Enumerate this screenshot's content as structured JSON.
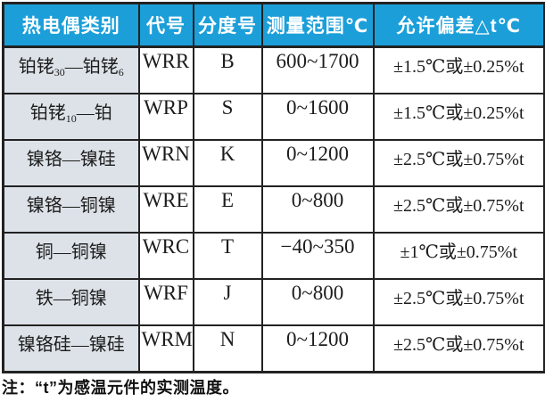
{
  "table": {
    "headers": [
      "热电偶类别",
      "代号",
      "分度号",
      "测量范围℃",
      "允许偏差△t℃"
    ],
    "rows": [
      {
        "name": "铂铑30-铂铑6",
        "name_parts": [
          {
            "t": "铂铑"
          },
          {
            "t": "30",
            "sub": true
          },
          {
            "t": "—"
          },
          {
            "t": "铂铑"
          },
          {
            "t": "6",
            "sub": true
          }
        ],
        "code": "WRR",
        "graduation": "B",
        "range": "600~1700",
        "tolerance": "±1.5℃或±0.25%t"
      },
      {
        "name": "铂铑10-铂",
        "name_parts": [
          {
            "t": "铂铑"
          },
          {
            "t": "10",
            "sub": true
          },
          {
            "t": "—"
          },
          {
            "t": "铂"
          }
        ],
        "code": "WRP",
        "graduation": "S",
        "range": "0~1600",
        "tolerance": "±1.5℃或±0.25%t"
      },
      {
        "name": "镍铬-镍硅",
        "name_parts": [
          {
            "t": "镍铬"
          },
          {
            "t": "—"
          },
          {
            "t": "镍硅"
          }
        ],
        "code": "WRN",
        "graduation": "K",
        "range": "0~1200",
        "tolerance": "±2.5℃或±0.75%t"
      },
      {
        "name": "镍铬-铜镍",
        "name_parts": [
          {
            "t": "镍铬"
          },
          {
            "t": "—"
          },
          {
            "t": "铜镍"
          }
        ],
        "code": "WRE",
        "graduation": "E",
        "range": "0~800",
        "tolerance": "±2.5℃或±0.75%t"
      },
      {
        "name": "铜-铜镍",
        "name_parts": [
          {
            "t": "铜"
          },
          {
            "t": "—"
          },
          {
            "t": "铜镍"
          }
        ],
        "code": "WRC",
        "graduation": "T",
        "range": "−40~350",
        "tolerance": "±1℃或±0.75%t"
      },
      {
        "name": "铁-铜镍",
        "name_parts": [
          {
            "t": "铁"
          },
          {
            "t": "—"
          },
          {
            "t": "铜镍"
          }
        ],
        "code": "WRF",
        "graduation": "J",
        "range": "0~800",
        "tolerance": "±2.5℃或±0.75%t"
      },
      {
        "name": "镍铬硅-镍硅",
        "name_parts": [
          {
            "t": "镍铬硅"
          },
          {
            "t": "—"
          },
          {
            "t": "镍硅"
          }
        ],
        "code": "WRM",
        "graduation": "N",
        "range": "0~1200",
        "tolerance": "±2.5℃或±0.75%t"
      }
    ],
    "note": "注：“t”为感温元件的实测温度。"
  },
  "colors": {
    "header_bg": "#1c9fd9",
    "header_text": "#ffffff",
    "firstcol_bg": "#dce2e8",
    "cell_bg": "#ffffff",
    "border": "#222222",
    "text": "#1c1c1c",
    "note_text": "#111111"
  }
}
